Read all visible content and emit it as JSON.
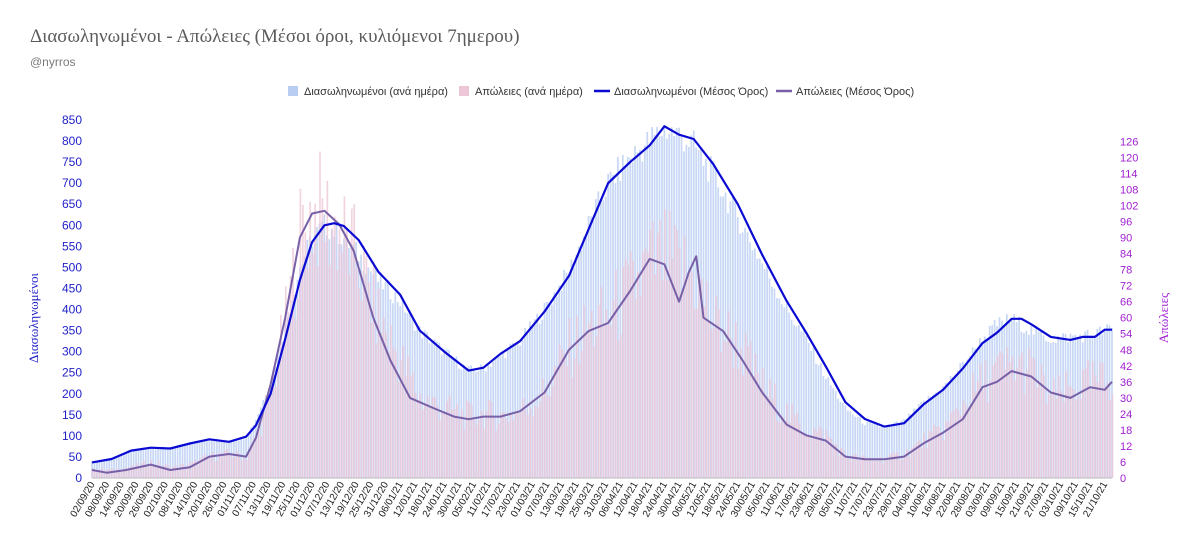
{
  "header": {
    "title": "Διασωληνωμένοι - Απώλειες (Μέσοι όροι, κυλιόμενοι 7ημερου)",
    "subtitle": "@nyrros"
  },
  "chart_data": {
    "type": "bar",
    "title": "Διασωληνωμένοι - Απώλειες (Μέσοι όροι, κυλιόμενοι 7ημερου)",
    "subtitle": "@nyrros",
    "ylabel": "Διασωληνωμένοι",
    "y2label": "Απώλειες",
    "ylim": [
      0,
      850
    ],
    "y2lim": [
      0,
      134
    ],
    "yticks": [
      0,
      50,
      100,
      150,
      200,
      250,
      300,
      350,
      400,
      450,
      500,
      550,
      600,
      650,
      700,
      750,
      800,
      850
    ],
    "y2ticks": [
      0,
      6,
      12,
      18,
      24,
      30,
      36,
      42,
      48,
      54,
      60,
      66,
      72,
      78,
      84,
      90,
      96,
      102,
      108,
      114,
      120,
      126
    ],
    "x_start": "2020-09-02",
    "x_end": "2021-10-24",
    "xtick_step_days": 6,
    "xticks": [
      "02/09/20",
      "08/09/20",
      "14/09/20",
      "20/09/20",
      "26/09/20",
      "02/10/20",
      "08/10/20",
      "14/10/20",
      "20/10/20",
      "26/10/20",
      "01/11/20",
      "07/11/20",
      "13/11/20",
      "19/11/20",
      "25/11/20",
      "01/12/20",
      "07/12/20",
      "13/12/20",
      "19/12/20",
      "25/12/20",
      "31/12/20",
      "06/01/21",
      "12/01/21",
      "18/01/21",
      "24/01/21",
      "30/01/21",
      "05/02/21",
      "11/02/21",
      "17/02/21",
      "23/02/21",
      "01/03/21",
      "07/03/21",
      "13/03/21",
      "19/03/21",
      "25/03/21",
      "31/03/21",
      "06/04/21",
      "12/04/21",
      "18/04/21",
      "24/04/21",
      "30/04/21",
      "06/05/21",
      "12/05/21",
      "18/05/21",
      "24/05/21",
      "30/05/21",
      "05/06/21",
      "11/06/21",
      "17/06/21",
      "23/06/21",
      "29/06/21",
      "05/07/21",
      "11/07/21",
      "17/07/21",
      "23/07/21",
      "29/07/21",
      "04/08/21",
      "10/08/21",
      "16/08/21",
      "22/08/21",
      "28/08/21",
      "03/09/21",
      "09/09/21",
      "15/09/21",
      "21/09/21",
      "27/09/21",
      "03/10/21",
      "09/10/21",
      "15/10/21",
      "21/10/21"
    ],
    "legend_position": "top",
    "grid": false,
    "series": [
      {
        "name": "Διασωληνωμένοι (ανά ημέρα)",
        "kind": "bar",
        "axis": "left",
        "color": "#b9cdf2",
        "points": [
          [
            "2020-09-02",
            37
          ],
          [
            "2020-09-10",
            45
          ],
          [
            "2020-09-18",
            65
          ],
          [
            "2020-09-26",
            72
          ],
          [
            "2020-10-04",
            70
          ],
          [
            "2020-10-12",
            82
          ],
          [
            "2020-10-20",
            92
          ],
          [
            "2020-10-28",
            86
          ],
          [
            "2020-11-04",
            98
          ],
          [
            "2020-11-08",
            140
          ],
          [
            "2020-11-14",
            230
          ],
          [
            "2020-11-20",
            360
          ],
          [
            "2020-11-26",
            500
          ],
          [
            "2020-12-01",
            570
          ],
          [
            "2020-12-06",
            600
          ],
          [
            "2020-12-12",
            580
          ],
          [
            "2020-12-20",
            530
          ],
          [
            "2020-12-28",
            470
          ],
          [
            "2021-01-06",
            420
          ],
          [
            "2021-01-14",
            350
          ],
          [
            "2021-01-24",
            300
          ],
          [
            "2021-02-03",
            255
          ],
          [
            "2021-02-09",
            260
          ],
          [
            "2021-02-16",
            290
          ],
          [
            "2021-02-24",
            325
          ],
          [
            "2021-03-06",
            400
          ],
          [
            "2021-03-16",
            490
          ],
          [
            "2021-03-24",
            600
          ],
          [
            "2021-04-01",
            700
          ],
          [
            "2021-04-10",
            760
          ],
          [
            "2021-04-18",
            800
          ],
          [
            "2021-04-24",
            830
          ],
          [
            "2021-04-30",
            815
          ],
          [
            "2021-05-06",
            790
          ],
          [
            "2021-05-14",
            720
          ],
          [
            "2021-05-24",
            620
          ],
          [
            "2021-06-03",
            510
          ],
          [
            "2021-06-13",
            400
          ],
          [
            "2021-06-21",
            330
          ],
          [
            "2021-06-29",
            240
          ],
          [
            "2021-07-07",
            165
          ],
          [
            "2021-07-15",
            130
          ],
          [
            "2021-07-23",
            120
          ],
          [
            "2021-07-31",
            135
          ],
          [
            "2021-08-08",
            180
          ],
          [
            "2021-08-16",
            215
          ],
          [
            "2021-08-24",
            270
          ],
          [
            "2021-09-01",
            330
          ],
          [
            "2021-09-07",
            365
          ],
          [
            "2021-09-13",
            378
          ],
          [
            "2021-09-21",
            350
          ],
          [
            "2021-09-29",
            330
          ],
          [
            "2021-10-07",
            335
          ],
          [
            "2021-10-15",
            340
          ],
          [
            "2021-10-24",
            355
          ]
        ]
      },
      {
        "name": "Απώλειες (ανά ημέρα)",
        "kind": "bar",
        "axis": "right",
        "color": "#ecc5d6",
        "points": [
          [
            "2020-09-02",
            3
          ],
          [
            "2020-09-10",
            3
          ],
          [
            "2020-09-18",
            4
          ],
          [
            "2020-09-26",
            6
          ],
          [
            "2020-10-04",
            4
          ],
          [
            "2020-10-12",
            5
          ],
          [
            "2020-10-20",
            8
          ],
          [
            "2020-10-28",
            9
          ],
          [
            "2020-11-04",
            8
          ],
          [
            "2020-11-08",
            15
          ],
          [
            "2020-11-14",
            32
          ],
          [
            "2020-11-20",
            58
          ],
          [
            "2020-11-26",
            90
          ],
          [
            "2020-12-01",
            100
          ],
          [
            "2020-12-06",
            98
          ],
          [
            "2020-12-12",
            92
          ],
          [
            "2020-12-20",
            80
          ],
          [
            "2020-12-28",
            60
          ],
          [
            "2021-01-06",
            44
          ],
          [
            "2021-01-14",
            30
          ],
          [
            "2021-01-24",
            26
          ],
          [
            "2021-02-03",
            23
          ],
          [
            "2021-02-09",
            24
          ],
          [
            "2021-02-16",
            23
          ],
          [
            "2021-02-24",
            25
          ],
          [
            "2021-03-06",
            32
          ],
          [
            "2021-03-16",
            48
          ],
          [
            "2021-03-24",
            56
          ],
          [
            "2021-04-01",
            60
          ],
          [
            "2021-04-10",
            70
          ],
          [
            "2021-04-18",
            80
          ],
          [
            "2021-04-24",
            82
          ],
          [
            "2021-04-30",
            78
          ],
          [
            "2021-05-06",
            75
          ],
          [
            "2021-05-14",
            58
          ],
          [
            "2021-05-24",
            50
          ],
          [
            "2021-06-03",
            34
          ],
          [
            "2021-06-13",
            24
          ],
          [
            "2021-06-21",
            18
          ],
          [
            "2021-06-29",
            16
          ],
          [
            "2021-07-07",
            8
          ],
          [
            "2021-07-15",
            7
          ],
          [
            "2021-07-23",
            7
          ],
          [
            "2021-07-31",
            9
          ],
          [
            "2021-08-08",
            14
          ],
          [
            "2021-08-16",
            18
          ],
          [
            "2021-08-24",
            28
          ],
          [
            "2021-09-01",
            36
          ],
          [
            "2021-09-07",
            40
          ],
          [
            "2021-09-13",
            42
          ],
          [
            "2021-09-21",
            40
          ],
          [
            "2021-09-29",
            30
          ],
          [
            "2021-10-07",
            33
          ],
          [
            "2021-10-15",
            36
          ],
          [
            "2021-10-24",
            36
          ]
        ]
      },
      {
        "name": "Διασωληνωμένοι (Μέσος Όρος)",
        "kind": "line",
        "axis": "left",
        "color": "#0a0ad2",
        "points": [
          [
            "2020-09-02",
            37
          ],
          [
            "2020-09-10",
            45
          ],
          [
            "2020-09-18",
            65
          ],
          [
            "2020-09-26",
            72
          ],
          [
            "2020-10-04",
            70
          ],
          [
            "2020-10-12",
            82
          ],
          [
            "2020-10-20",
            92
          ],
          [
            "2020-10-28",
            86
          ],
          [
            "2020-11-04",
            98
          ],
          [
            "2020-11-08",
            125
          ],
          [
            "2020-11-14",
            200
          ],
          [
            "2020-11-20",
            330
          ],
          [
            "2020-11-26",
            470
          ],
          [
            "2020-12-01",
            560
          ],
          [
            "2020-12-06",
            600
          ],
          [
            "2020-12-10",
            605
          ],
          [
            "2020-12-14",
            598
          ],
          [
            "2020-12-20",
            565
          ],
          [
            "2020-12-28",
            490
          ],
          [
            "2021-01-06",
            435
          ],
          [
            "2021-01-14",
            350
          ],
          [
            "2021-01-24",
            300
          ],
          [
            "2021-02-03",
            255
          ],
          [
            "2021-02-09",
            262
          ],
          [
            "2021-02-16",
            295
          ],
          [
            "2021-02-24",
            325
          ],
          [
            "2021-03-06",
            395
          ],
          [
            "2021-03-16",
            480
          ],
          [
            "2021-03-24",
            590
          ],
          [
            "2021-04-01",
            700
          ],
          [
            "2021-04-10",
            750
          ],
          [
            "2021-04-18",
            790
          ],
          [
            "2021-04-24",
            835
          ],
          [
            "2021-04-30",
            815
          ],
          [
            "2021-05-06",
            805
          ],
          [
            "2021-05-14",
            745
          ],
          [
            "2021-05-24",
            650
          ],
          [
            "2021-06-03",
            530
          ],
          [
            "2021-06-13",
            420
          ],
          [
            "2021-06-21",
            345
          ],
          [
            "2021-06-29",
            265
          ],
          [
            "2021-07-07",
            180
          ],
          [
            "2021-07-15",
            140
          ],
          [
            "2021-07-23",
            122
          ],
          [
            "2021-07-31",
            130
          ],
          [
            "2021-08-08",
            175
          ],
          [
            "2021-08-16",
            210
          ],
          [
            "2021-08-24",
            260
          ],
          [
            "2021-09-01",
            320
          ],
          [
            "2021-09-07",
            345
          ],
          [
            "2021-09-13",
            378
          ],
          [
            "2021-09-17",
            378
          ],
          [
            "2021-09-21",
            365
          ],
          [
            "2021-09-29",
            335
          ],
          [
            "2021-10-07",
            328
          ],
          [
            "2021-10-12",
            335
          ],
          [
            "2021-10-17",
            335
          ],
          [
            "2021-10-21",
            352
          ],
          [
            "2021-10-24",
            352
          ]
        ]
      },
      {
        "name": "Απώλειες (Μέσος Όρος)",
        "kind": "line",
        "axis": "right",
        "color": "#7860a8",
        "points": [
          [
            "2020-09-02",
            3
          ],
          [
            "2020-09-08",
            2
          ],
          [
            "2020-09-16",
            3
          ],
          [
            "2020-09-26",
            5
          ],
          [
            "2020-10-04",
            3
          ],
          [
            "2020-10-12",
            4
          ],
          [
            "2020-10-20",
            8
          ],
          [
            "2020-10-28",
            9
          ],
          [
            "2020-11-04",
            8
          ],
          [
            "2020-11-08",
            15
          ],
          [
            "2020-11-14",
            35
          ],
          [
            "2020-11-20",
            60
          ],
          [
            "2020-11-26",
            90
          ],
          [
            "2020-12-01",
            99
          ],
          [
            "2020-12-06",
            100
          ],
          [
            "2020-12-12",
            95
          ],
          [
            "2020-12-18",
            85
          ],
          [
            "2020-12-26",
            60
          ],
          [
            "2021-01-02",
            44
          ],
          [
            "2021-01-10",
            30
          ],
          [
            "2021-01-20",
            26
          ],
          [
            "2021-01-28",
            23
          ],
          [
            "2021-02-03",
            22
          ],
          [
            "2021-02-09",
            23
          ],
          [
            "2021-02-16",
            23
          ],
          [
            "2021-02-24",
            25
          ],
          [
            "2021-03-06",
            32
          ],
          [
            "2021-03-16",
            48
          ],
          [
            "2021-03-24",
            55
          ],
          [
            "2021-04-01",
            58
          ],
          [
            "2021-04-10",
            70
          ],
          [
            "2021-04-18",
            82
          ],
          [
            "2021-04-24",
            80
          ],
          [
            "2021-04-30",
            66
          ],
          [
            "2021-05-04",
            77
          ],
          [
            "2021-05-07",
            83
          ],
          [
            "2021-05-10",
            60
          ],
          [
            "2021-05-18",
            55
          ],
          [
            "2021-05-26",
            44
          ],
          [
            "2021-06-03",
            32
          ],
          [
            "2021-06-13",
            20
          ],
          [
            "2021-06-21",
            16
          ],
          [
            "2021-06-29",
            14
          ],
          [
            "2021-07-07",
            8
          ],
          [
            "2021-07-15",
            7
          ],
          [
            "2021-07-23",
            7
          ],
          [
            "2021-07-31",
            8
          ],
          [
            "2021-08-08",
            13
          ],
          [
            "2021-08-16",
            17
          ],
          [
            "2021-08-24",
            22
          ],
          [
            "2021-09-01",
            34
          ],
          [
            "2021-09-07",
            36
          ],
          [
            "2021-09-13",
            40
          ],
          [
            "2021-09-21",
            38
          ],
          [
            "2021-09-29",
            32
          ],
          [
            "2021-10-07",
            30
          ],
          [
            "2021-10-15",
            34
          ],
          [
            "2021-10-21",
            33
          ],
          [
            "2021-10-24",
            36
          ]
        ]
      }
    ]
  }
}
